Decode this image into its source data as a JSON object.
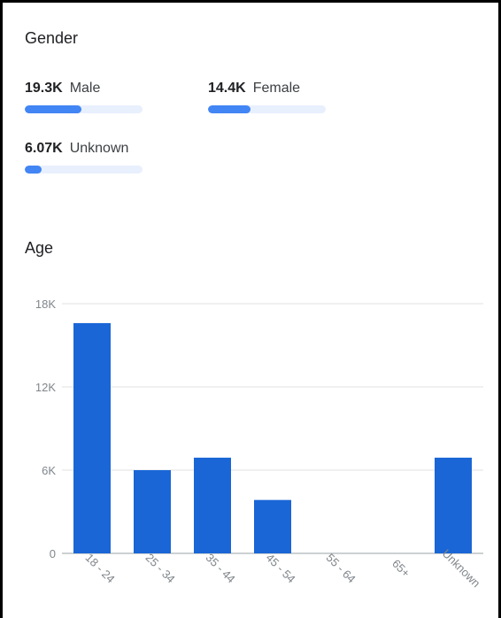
{
  "gender": {
    "title": "Gender",
    "accent": "#4285f4",
    "track_color": "#e8f0fe",
    "items": [
      {
        "value": "19.3K",
        "label": "Male",
        "share": 0.48
      },
      {
        "value": "14.4K",
        "label": "Female",
        "share": 0.36
      },
      {
        "value": "6.07K",
        "label": "Unknown",
        "share": 0.14
      }
    ]
  },
  "age": {
    "title": "Age"
  },
  "chart_data": {
    "type": "bar",
    "categories": [
      "18 - 24",
      "25 - 34",
      "35 - 44",
      "45 - 54",
      "55 - 64",
      "65+",
      "Unknown"
    ],
    "values": [
      16600,
      6000,
      6900,
      3850,
      0,
      0,
      6900
    ],
    "ylim": [
      0,
      18000
    ],
    "yticks": [
      0,
      6000,
      12000,
      18000
    ],
    "ytick_labels": [
      "0",
      "6K",
      "12K",
      "18K"
    ],
    "bar_color": "#1a66d6",
    "grid": true,
    "legend": "none"
  }
}
